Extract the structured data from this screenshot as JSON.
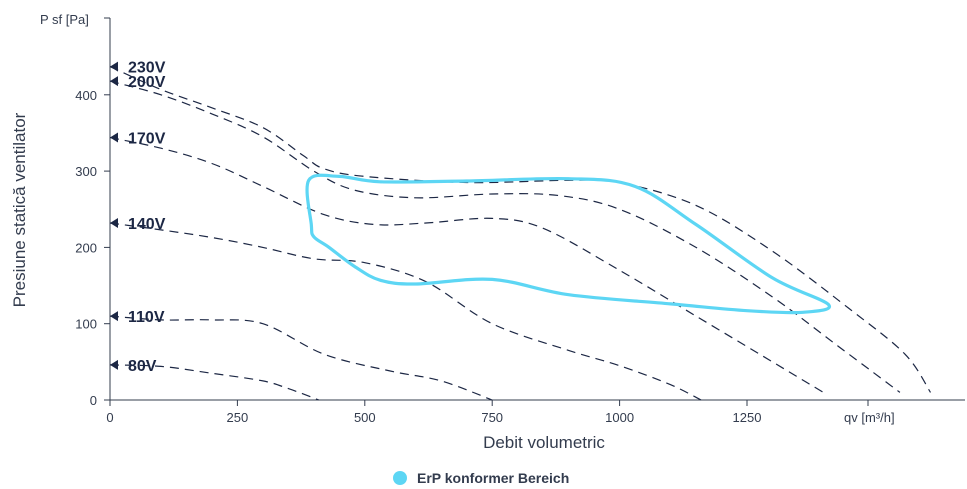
{
  "chart_data": {
    "type": "line",
    "xlabel": "Debit volumetric",
    "x_unit": "qv [m³/h]",
    "ylabel": "Presiune statică ventilator",
    "y_unit": "P sf [Pa]",
    "xlim": [
      0,
      1680
    ],
    "ylim": [
      0,
      500
    ],
    "x_ticks": [
      0,
      250,
      500,
      750,
      1000,
      1250
    ],
    "x_tick_labels": [
      "0",
      "250",
      "500",
      "750",
      "1000",
      "1250"
    ],
    "y_ticks": [
      0,
      100,
      200,
      300,
      400
    ],
    "y_tick_labels": [
      "0",
      "100",
      "200",
      "300",
      "400"
    ],
    "grid": false,
    "legend": {
      "position": "bottom-center",
      "entries": [
        {
          "label": "ErP konformer Bereich",
          "color": "#5dd6f4"
        }
      ]
    },
    "colors": {
      "curve": "#1c2744",
      "erp": "#5dd6f4",
      "axis": "#333c4e"
    },
    "series": [
      {
        "name": "230V",
        "marker_y": 437,
        "dashed": true,
        "points": [
          [
            0,
            437
          ],
          [
            100,
            407
          ],
          [
            200,
            383
          ],
          [
            300,
            357
          ],
          [
            380,
            320
          ],
          [
            420,
            303
          ],
          [
            500,
            293
          ],
          [
            700,
            285
          ],
          [
            900,
            288
          ],
          [
            1000,
            285
          ],
          [
            1150,
            255
          ],
          [
            1300,
            195
          ],
          [
            1450,
            120
          ],
          [
            1560,
            60
          ],
          [
            1610,
            10
          ]
        ]
      },
      {
        "name": "200V",
        "marker_y": 418,
        "dashed": true,
        "points": [
          [
            0,
            418
          ],
          [
            100,
            400
          ],
          [
            200,
            375
          ],
          [
            300,
            345
          ],
          [
            400,
            300
          ],
          [
            480,
            275
          ],
          [
            600,
            265
          ],
          [
            750,
            270
          ],
          [
            880,
            268
          ],
          [
            1000,
            250
          ],
          [
            1150,
            200
          ],
          [
            1300,
            135
          ],
          [
            1430,
            70
          ],
          [
            1550,
            10
          ]
        ]
      },
      {
        "name": "170V",
        "marker_y": 344,
        "dashed": true,
        "points": [
          [
            0,
            344
          ],
          [
            100,
            330
          ],
          [
            200,
            310
          ],
          [
            300,
            280
          ],
          [
            420,
            243
          ],
          [
            520,
            230
          ],
          [
            620,
            232
          ],
          [
            750,
            238
          ],
          [
            850,
            225
          ],
          [
            1000,
            170
          ],
          [
            1150,
            110
          ],
          [
            1300,
            50
          ],
          [
            1400,
            10
          ]
        ]
      },
      {
        "name": "140V",
        "marker_y": 232,
        "dashed": true,
        "points": [
          [
            0,
            232
          ],
          [
            100,
            223
          ],
          [
            200,
            213
          ],
          [
            300,
            200
          ],
          [
            400,
            185
          ],
          [
            500,
            180
          ],
          [
            620,
            155
          ],
          [
            750,
            100
          ],
          [
            900,
            65
          ],
          [
            1000,
            45
          ],
          [
            1100,
            20
          ],
          [
            1160,
            0
          ]
        ]
      },
      {
        "name": "110V",
        "marker_y": 110,
        "dashed": true,
        "points": [
          [
            0,
            110
          ],
          [
            100,
            105
          ],
          [
            200,
            105
          ],
          [
            300,
            100
          ],
          [
            420,
            60
          ],
          [
            550,
            38
          ],
          [
            650,
            25
          ],
          [
            750,
            0
          ]
        ]
      },
      {
        "name": "80V",
        "marker_y": 46,
        "dashed": true,
        "points": [
          [
            0,
            46
          ],
          [
            100,
            44
          ],
          [
            200,
            35
          ],
          [
            300,
            25
          ],
          [
            350,
            15
          ],
          [
            410,
            0
          ]
        ]
      }
    ],
    "erp_region": {
      "name": "ErP konformer Bereich",
      "closed": true,
      "points": [
        [
          390,
          288
        ],
        [
          450,
          293
        ],
        [
          530,
          286
        ],
        [
          700,
          287
        ],
        [
          900,
          290
        ],
        [
          1030,
          280
        ],
        [
          1150,
          230
        ],
        [
          1300,
          160
        ],
        [
          1410,
          125
        ],
        [
          1360,
          115
        ],
        [
          1250,
          117
        ],
        [
          1100,
          126
        ],
        [
          900,
          138
        ],
        [
          750,
          158
        ],
        [
          600,
          152
        ],
        [
          530,
          157
        ],
        [
          480,
          175
        ],
        [
          430,
          200
        ],
        [
          400,
          214
        ],
        [
          395,
          230
        ],
        [
          390,
          288
        ]
      ]
    }
  }
}
